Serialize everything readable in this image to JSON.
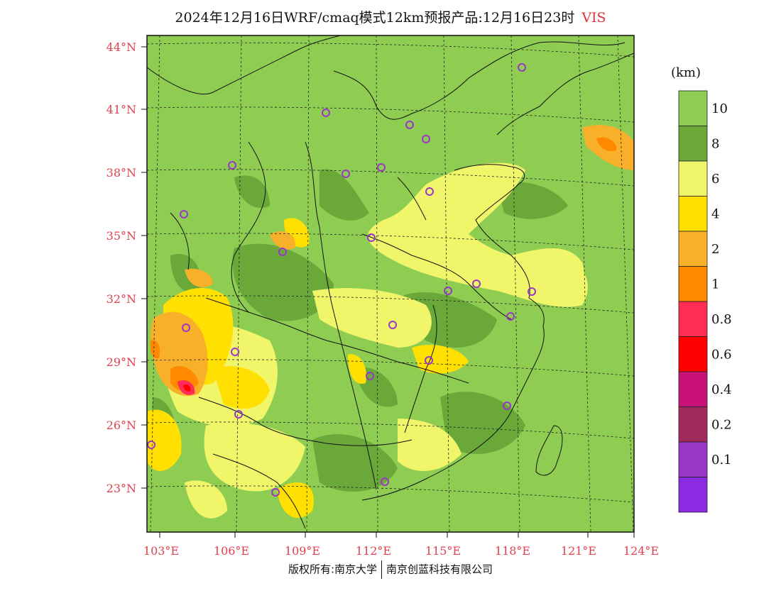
{
  "title": {
    "text": "2024年12月16日WRF/cmaq模式12km预报产品:12月16日23时",
    "variable": "VIS"
  },
  "footer": {
    "left": "版权所有:南京大学",
    "right": "南京创蓝科技有限公司"
  },
  "map": {
    "lat_labels": [
      "44°N",
      "41°N",
      "38°N",
      "35°N",
      "32°N",
      "29°N",
      "26°N",
      "23°N"
    ],
    "lon_labels": [
      "103°E",
      "106°E",
      "109°E",
      "112°E",
      "115°E",
      "118°E",
      "121°E",
      "124°E"
    ],
    "background_color": "#8ecd52"
  },
  "colorbar": {
    "unit": "(km)",
    "levels": [
      {
        "label": "10",
        "color": "#8ecd52"
      },
      {
        "label": "8",
        "color": "#6aa83a"
      },
      {
        "label": "6",
        "color": "#f0f56a"
      },
      {
        "label": "4",
        "color": "#ffe000"
      },
      {
        "label": "2",
        "color": "#f8b02a"
      },
      {
        "label": "1",
        "color": "#ff8a00"
      },
      {
        "label": "0.8",
        "color": "#ff2d55"
      },
      {
        "label": "0.6",
        "color": "#ff0000"
      },
      {
        "label": "0.4",
        "color": "#c8127a"
      },
      {
        "label": "0.2",
        "color": "#a0285a"
      },
      {
        "label": "0.1",
        "color": "#9a36c8"
      },
      {
        "label": "",
        "color": "#8a2be2"
      }
    ]
  },
  "stations_marker": "purple-circle"
}
